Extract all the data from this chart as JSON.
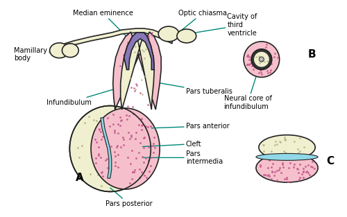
{
  "bg_color": "#ffffff",
  "outline_color": "#222222",
  "pink_fill": "#f5c0cc",
  "cream_fill": "#f0f0d0",
  "blue_fill": "#90d8e8",
  "purple_fill": "#8878b8",
  "ann_color": "#008878",
  "ann_fs": 7,
  "label_A": "A",
  "label_B": "B",
  "label_C": "C",
  "labels": {
    "median_eminence": "Median eminence",
    "optic_chiasma": "Optic chiasma",
    "cavity_third": "Cavity of\nthird\nventricle",
    "mamillary_body": "Mamillary\nbody",
    "infundibulum": "Infundibulum",
    "pars_tuberalis": "Pars tuberalis",
    "pars_anterior": "Pars anterior",
    "cleft": "Cleft",
    "pars_intermedia": "Pars\nintermedia",
    "pars_posterior": "Pars posterior",
    "neural_core": "Neural core of\ninfundibulum"
  }
}
